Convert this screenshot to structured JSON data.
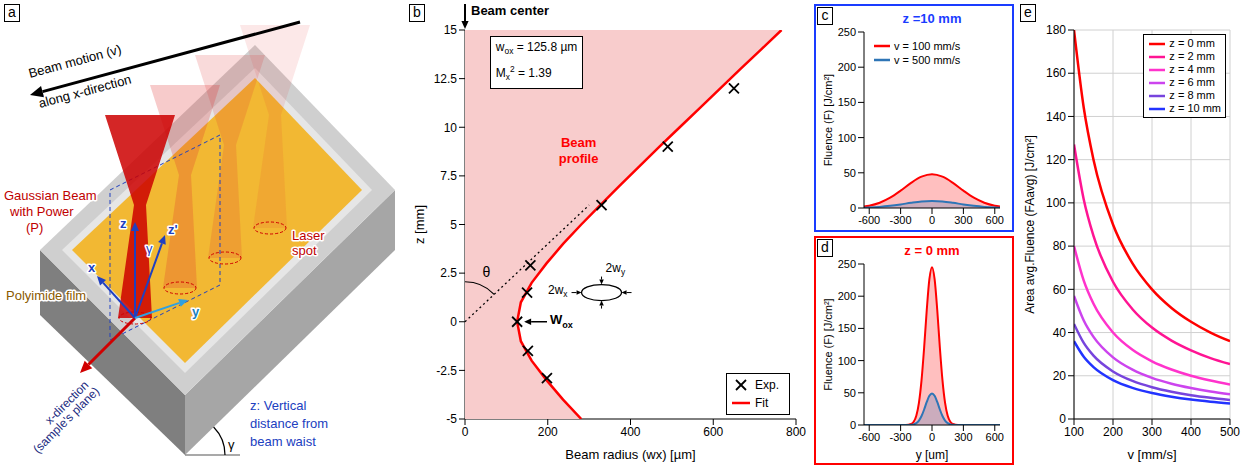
{
  "diagram": {
    "panel": "a",
    "motion_label": [
      "Beam motion (v)",
      "along x-direction"
    ],
    "beam_label": [
      "Gaussian Beam",
      "with Power",
      "(P)"
    ],
    "spot_label": [
      "Laser",
      "spot"
    ],
    "sample_axis_label": [
      "x-direction",
      "(sample's plane)"
    ],
    "z_label": [
      "z: Vertical",
      "distance from",
      "beam waist"
    ],
    "film_label": "Polyimide film",
    "axis_labels": {
      "x": "x",
      "y": "y",
      "z": "z",
      "z_prime": "z'",
      "angle": "γ"
    }
  },
  "chart_data": [
    {
      "panel": "b",
      "type": "scatter",
      "xlabel": "Beam radius (wx) [µm]",
      "ylabel": "z [mm]",
      "xlim": [
        0,
        800
      ],
      "xticks": [
        0,
        200,
        400,
        600,
        800
      ],
      "ylim": [
        -5,
        15
      ],
      "yticks": [
        -5,
        -2.5,
        0,
        2.5,
        5,
        7.5,
        10,
        12.5,
        15
      ],
      "grid": false,
      "legend": "lower right",
      "fit_params": [
        {
          "symbol": "w",
          "sub": "ox",
          "text": "= 125.8 µm"
        },
        {
          "symbol": "M",
          "sub": "x",
          "sup": "2",
          "text": "= 1.39"
        }
      ],
      "beam_center_label": "Beam center",
      "profile_label": "Beam profile",
      "waist_label": {
        "symbol": "W",
        "sub": "ox"
      },
      "angle_label": "θ",
      "spot_labels": [
        {
          "symbol": "2w",
          "sub": "x"
        },
        {
          "symbol": "2w",
          "sub": "y"
        }
      ],
      "asymptote": {
        "x": [
          0,
          300
        ],
        "y": [
          0,
          6
        ],
        "line_style": "dotted",
        "color": "#000000"
      },
      "series": [
        {
          "name": "Exp.",
          "type": "scatter",
          "marker": "x",
          "color": "#000000",
          "x": [
            126,
            150,
            152,
            158,
            198,
            330,
            490,
            650
          ],
          "y": [
            0,
            1.5,
            -1.5,
            2.9,
            -2.9,
            6,
            9,
            12
          ]
        },
        {
          "name": "Fit",
          "type": "line",
          "color": "#ff0000",
          "x": [
            281,
            237,
            197,
            161,
            135,
            126,
            135,
            161,
            197,
            237,
            281,
            327,
            374,
            422,
            470,
            519,
            568,
            617,
            666,
            716,
            765
          ],
          "y": [
            -5,
            -4,
            -3,
            -2,
            -1,
            0,
            1,
            2,
            3,
            4,
            5,
            6,
            7,
            8,
            9,
            10,
            11,
            12,
            13,
            14,
            15
          ]
        }
      ]
    },
    {
      "panel": "c",
      "type": "area",
      "title": "z =10 mm",
      "color": "#1a3cff",
      "ylabel": "Fluence (F) [J/cm²]",
      "xlim": [
        -650,
        650
      ],
      "xticks": [
        -600,
        -300,
        0,
        300,
        600
      ],
      "ylim": [
        0,
        250
      ],
      "yticks": [
        0,
        50,
        100,
        150,
        200,
        250
      ],
      "grid": false,
      "legend": "upper left",
      "x": [
        -650,
        -600,
        -500,
        -400,
        -300,
        -200,
        -100,
        0,
        100,
        200,
        300,
        400,
        500,
        600,
        650
      ],
      "series": [
        {
          "name": "v = 100 mm/s",
          "color": "#ff0000",
          "values": [
            2.1,
            3.3,
            7.5,
            14.6,
            24.6,
            35.7,
            44.5,
            48,
            44.5,
            35.7,
            24.6,
            14.6,
            7.5,
            3.3,
            2.1
          ]
        },
        {
          "name": "v = 500 mm/s",
          "color": "#2e75b6",
          "values": [
            0.4,
            0.7,
            1.6,
            3.1,
            5.1,
            7.4,
            9.3,
            10,
            9.3,
            7.4,
            5.1,
            3.1,
            1.6,
            0.7,
            0.4
          ]
        }
      ]
    },
    {
      "panel": "d",
      "type": "area",
      "title": "z = 0 mm",
      "color": "#ff0000",
      "xlabel": "y [um]",
      "ylabel": "Fluence (F) [J/cm²]",
      "xlim": [
        -650,
        650
      ],
      "xticks": [
        -600,
        -300,
        0,
        300,
        600
      ],
      "ylim": [
        0,
        250
      ],
      "yticks": [
        0,
        50,
        100,
        150,
        200,
        250
      ],
      "grid": false,
      "x": [
        -650,
        -600,
        -300,
        -250,
        -200,
        -175,
        -150,
        -125,
        -100,
        -75,
        -50,
        -25,
        0,
        25,
        50,
        75,
        100,
        125,
        150,
        175,
        200,
        250,
        300,
        600,
        650
      ],
      "series": [
        {
          "color": "#ff0000",
          "values": [
            0,
            0,
            0,
            0.1,
            1.6,
            5.1,
            14.4,
            34.3,
            69.6,
            120.5,
            178.9,
            226.4,
            245,
            226.4,
            178.9,
            120.5,
            69.6,
            34.3,
            14.4,
            5.1,
            1.6,
            0.1,
            0,
            0,
            0
          ]
        },
        {
          "color": "#2e75b6",
          "values": [
            0,
            0,
            0,
            0,
            0.3,
            1,
            2.9,
            6.9,
            13.9,
            24.1,
            35.8,
            45.3,
            49,
            45.3,
            35.8,
            24.1,
            13.9,
            6.9,
            2.9,
            1,
            0.3,
            0,
            0,
            0,
            0
          ]
        }
      ]
    },
    {
      "panel": "e",
      "type": "line",
      "xlabel": "v [mm/s]",
      "ylabel": "Area avg.Fluence (FAavg) [J/cm²]",
      "xlim": [
        100,
        500
      ],
      "xticks": [
        100,
        200,
        300,
        400,
        500
      ],
      "ylim": [
        0,
        180
      ],
      "yticks": [
        0,
        20,
        40,
        60,
        80,
        100,
        120,
        140,
        160,
        180
      ],
      "grid": true,
      "legend": "upper right",
      "x": [
        100,
        125,
        150,
        200,
        250,
        300,
        350,
        400,
        450,
        500
      ],
      "series": [
        {
          "name": "z = 0 mm",
          "color": "#ff0000",
          "values": [
            180,
            144,
            120,
            90,
            72,
            60,
            51.4,
            45,
            40,
            36
          ]
        },
        {
          "name": "z = 2 mm",
          "color": "#ff1493",
          "values": [
            127,
            101.6,
            84.7,
            63.5,
            50.8,
            42.3,
            36.3,
            31.8,
            28.2,
            25.4
          ]
        },
        {
          "name": "z = 4 mm",
          "color": "#ff33cc",
          "values": [
            80,
            64,
            53.3,
            40,
            32,
            26.7,
            22.9,
            20,
            17.8,
            16
          ]
        },
        {
          "name": "z = 6 mm",
          "color": "#cc44ee",
          "values": [
            57,
            45.6,
            38,
            28.5,
            22.8,
            19,
            16.3,
            14.3,
            12.7,
            11.4
          ]
        },
        {
          "name": "z = 8 mm",
          "color": "#7744dd",
          "values": [
            44,
            35.2,
            29.3,
            22,
            17.6,
            14.7,
            12.6,
            11,
            9.8,
            8.8
          ]
        },
        {
          "name": "z = 10 mm",
          "color": "#2233ff",
          "values": [
            36,
            28.8,
            24,
            18,
            14.4,
            12,
            10.3,
            9,
            8,
            7.2
          ]
        }
      ]
    }
  ]
}
